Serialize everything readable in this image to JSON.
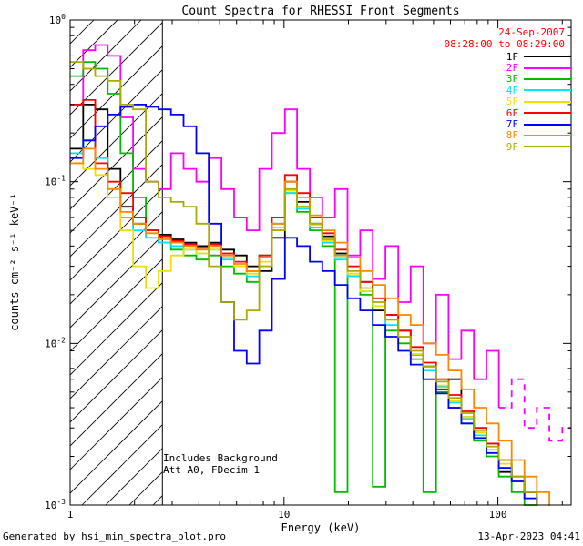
{
  "header": {
    "date": "24-Sep-2007",
    "time_range": "08:28:00 to 08:29:00",
    "date_color": "#ff0000"
  },
  "annotations": {
    "line1": "Includes Background",
    "line2": "Att A0, FDecim 1"
  },
  "footer": {
    "left": "Generated by hsi_min_spectra_plot.pro",
    "right": "13-Apr-2023 04:41"
  },
  "chart_data": {
    "type": "line",
    "title": "Count Spectra for RHESSI Front Segments",
    "xlabel": "Energy (keV)",
    "ylabel": "counts cm⁻² s⁻¹ keV⁻¹",
    "xscale": "log",
    "yscale": "log",
    "xlim": [
      1,
      220
    ],
    "ylim": [
      0.001,
      1
    ],
    "x_major_ticks": [
      1,
      10,
      100
    ],
    "x_tick_labels": [
      "1",
      "10",
      "100"
    ],
    "y_major_ticks": [
      1,
      0.1,
      0.01,
      0.001
    ],
    "y_tick_exponents": [
      "0",
      "-1",
      "-2",
      "-3"
    ],
    "grid": false,
    "legend_position": "top-right",
    "hatch_region": {
      "xmin": 1,
      "xmax": 2.7
    },
    "energies_kev": [
      1.0,
      1.15,
      1.31,
      1.5,
      1.72,
      1.97,
      2.26,
      2.59,
      2.96,
      3.39,
      3.89,
      4.45,
      5.1,
      5.84,
      6.69,
      7.66,
      8.78,
      10.1,
      11.5,
      13.2,
      15.1,
      17.3,
      19.8,
      22.7,
      26.0,
      29.8,
      34.2,
      39.1,
      44.8,
      51.4,
      58.8,
      67.4,
      77.2,
      88.4,
      101,
      116,
      133,
      152,
      174,
      200
    ],
    "series": [
      {
        "name": "1F",
        "color": "#000000",
        "values": [
          0.16,
          0.3,
          0.28,
          0.12,
          0.07,
          0.055,
          0.05,
          0.047,
          0.044,
          0.042,
          0.04,
          0.042,
          0.038,
          0.035,
          0.03,
          0.028,
          0.045,
          0.1,
          0.075,
          0.055,
          0.046,
          0.036,
          0.026,
          0.024,
          0.016,
          0.015,
          0.012,
          0.0085,
          0.0072,
          0.0052,
          0.006,
          0.0035,
          0.0028,
          0.0024,
          0.0016,
          0.0014,
          0.0012,
          0.00085,
          0.00075,
          0.0006
        ]
      },
      {
        "name": "2F",
        "color": "#ff00ff",
        "dash_from_kev": 100,
        "values": [
          0.3,
          0.65,
          0.7,
          0.6,
          0.25,
          0.12,
          0.1,
          0.09,
          0.15,
          0.12,
          0.1,
          0.14,
          0.09,
          0.06,
          0.05,
          0.12,
          0.2,
          0.28,
          0.12,
          0.08,
          0.06,
          0.09,
          0.035,
          0.05,
          0.025,
          0.04,
          0.018,
          0.03,
          0.01,
          0.02,
          0.008,
          0.012,
          0.006,
          0.009,
          0.004,
          0.006,
          0.003,
          0.004,
          0.0025,
          0.003
        ]
      },
      {
        "name": "3F",
        "color": "#00bb00",
        "values": [
          0.45,
          0.55,
          0.5,
          0.35,
          0.15,
          0.08,
          0.05,
          0.042,
          0.038,
          0.035,
          0.033,
          0.035,
          0.03,
          0.027,
          0.024,
          0.035,
          0.055,
          0.085,
          0.065,
          0.05,
          0.04,
          0.0012,
          0.026,
          0.02,
          0.0013,
          0.012,
          0.01,
          0.008,
          0.0012,
          0.005,
          0.004,
          0.0032,
          0.0025,
          0.002,
          0.0015,
          0.0012,
          0.001,
          0.0008,
          0.00065,
          0.00055
        ]
      },
      {
        "name": "4F",
        "color": "#00e5ff",
        "values": [
          0.15,
          0.18,
          0.14,
          0.09,
          0.06,
          0.05,
          0.045,
          0.042,
          0.04,
          0.038,
          0.036,
          0.038,
          0.033,
          0.03,
          0.026,
          0.03,
          0.05,
          0.085,
          0.068,
          0.052,
          0.042,
          0.033,
          0.026,
          0.021,
          0.017,
          0.013,
          0.011,
          0.0085,
          0.0068,
          0.0054,
          0.0043,
          0.0034,
          0.0027,
          0.0022,
          0.0017,
          0.0014,
          0.0011,
          0.00088,
          0.0007,
          0.00056
        ]
      },
      {
        "name": "5F",
        "color": "#f2df00",
        "values": [
          0.13,
          0.12,
          0.11,
          0.08,
          0.05,
          0.03,
          0.022,
          0.028,
          0.035,
          0.038,
          0.036,
          0.038,
          0.034,
          0.03,
          0.027,
          0.032,
          0.052,
          0.088,
          0.07,
          0.054,
          0.043,
          0.034,
          0.027,
          0.021,
          0.017,
          0.014,
          0.011,
          0.0086,
          0.0069,
          0.0055,
          0.0044,
          0.0035,
          0.0028,
          0.0022,
          0.0018,
          0.0014,
          0.0011,
          0.0009,
          0.00072,
          0.00058
        ]
      },
      {
        "name": "6F",
        "color": "#ff0000",
        "values": [
          0.3,
          0.32,
          0.13,
          0.1,
          0.085,
          0.06,
          0.05,
          0.046,
          0.043,
          0.041,
          0.039,
          0.041,
          0.036,
          0.032,
          0.028,
          0.035,
          0.06,
          0.11,
          0.085,
          0.06,
          0.048,
          0.038,
          0.03,
          0.024,
          0.019,
          0.015,
          0.012,
          0.0095,
          0.0076,
          0.006,
          0.0048,
          0.0038,
          0.003,
          0.0024,
          0.0019,
          0.0015,
          0.0012,
          0.00095,
          0.00078,
          0.00062
        ]
      },
      {
        "name": "7F",
        "color": "#0000ff",
        "values": [
          0.14,
          0.18,
          0.22,
          0.26,
          0.29,
          0.3,
          0.29,
          0.28,
          0.26,
          0.22,
          0.15,
          0.055,
          0.018,
          0.009,
          0.0075,
          0.012,
          0.025,
          0.045,
          0.04,
          0.032,
          0.028,
          0.023,
          0.019,
          0.016,
          0.013,
          0.011,
          0.009,
          0.0074,
          0.006,
          0.0049,
          0.004,
          0.0032,
          0.0026,
          0.0021,
          0.0017,
          0.0014,
          0.0011,
          0.0009,
          0.00073,
          0.0006
        ]
      },
      {
        "name": "8F",
        "color": "#ff8800",
        "values": [
          0.13,
          0.16,
          0.12,
          0.09,
          0.065,
          0.055,
          0.048,
          0.044,
          0.042,
          0.04,
          0.038,
          0.04,
          0.035,
          0.031,
          0.028,
          0.034,
          0.055,
          0.1,
          0.08,
          0.062,
          0.05,
          0.042,
          0.034,
          0.028,
          0.023,
          0.019,
          0.015,
          0.013,
          0.01,
          0.0085,
          0.0068,
          0.0052,
          0.004,
          0.0032,
          0.0025,
          0.0019,
          0.0015,
          0.0012,
          0.00095,
          0.00075
        ]
      },
      {
        "name": "9F",
        "color": "#aaaa00",
        "values": [
          0.55,
          0.5,
          0.45,
          0.42,
          0.3,
          0.28,
          0.1,
          0.08,
          0.075,
          0.07,
          0.055,
          0.03,
          0.018,
          0.014,
          0.016,
          0.03,
          0.05,
          0.09,
          0.07,
          0.055,
          0.044,
          0.035,
          0.028,
          0.022,
          0.018,
          0.014,
          0.011,
          0.009,
          0.0072,
          0.0058,
          0.0046,
          0.0037,
          0.0029,
          0.0023,
          0.0019,
          0.0015,
          0.0012,
          0.00095,
          0.00076,
          0.00061
        ]
      }
    ]
  }
}
